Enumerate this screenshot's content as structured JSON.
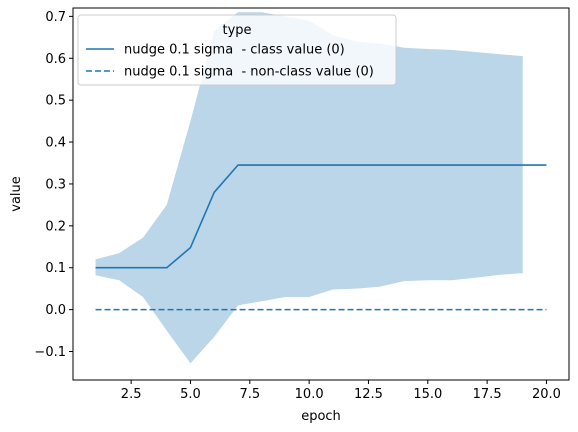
{
  "chart_data": {
    "type": "line",
    "xlabel": "epoch",
    "ylabel": "value",
    "xlim": [
      0.05,
      20.95
    ],
    "ylim": [
      -0.168,
      0.72
    ],
    "x_ticks": [
      2.5,
      5.0,
      7.5,
      10.0,
      12.5,
      15.0,
      17.5,
      20.0
    ],
    "x_tick_labels": [
      "2.5",
      "5.0",
      "7.5",
      "10.0",
      "12.5",
      "15.0",
      "17.5",
      "20.0"
    ],
    "y_ticks": [
      -0.1,
      0.0,
      0.1,
      0.2,
      0.3,
      0.4,
      0.5,
      0.6,
      0.7
    ],
    "y_tick_labels": [
      "−0.1",
      "0.0",
      "0.1",
      "0.2",
      "0.3",
      "0.4",
      "0.5",
      "0.6",
      "0.7"
    ],
    "grid": false,
    "legend": {
      "title": "type",
      "placement": "top-left"
    },
    "series": [
      {
        "name": "nudge 0.1 sigma  - class value (0)",
        "style": "solid",
        "color": "#1f77b4",
        "x": [
          1,
          2,
          3,
          4,
          5,
          6,
          7,
          8,
          9,
          10,
          11,
          12,
          13,
          14,
          15,
          16,
          17,
          18,
          19,
          20
        ],
        "values": [
          0.1,
          0.1,
          0.1,
          0.1,
          0.148,
          0.28,
          0.345,
          0.345,
          0.345,
          0.345,
          0.345,
          0.345,
          0.345,
          0.345,
          0.345,
          0.345,
          0.345,
          0.345,
          0.345,
          0.345
        ]
      },
      {
        "name": "nudge 0.1 sigma  - non-class value (0)",
        "style": "dashed",
        "color": "#1f77b4",
        "x": [
          1,
          20
        ],
        "values": [
          0.0,
          0.0
        ]
      }
    ],
    "band": {
      "color": "#1f77b4",
      "opacity": 0.3,
      "x": [
        1,
        2,
        3,
        4,
        5,
        6,
        7,
        8,
        9,
        10,
        11,
        12,
        13,
        14,
        15,
        16,
        17,
        18,
        19
      ],
      "upper": [
        0.12,
        0.135,
        0.172,
        0.25,
        0.45,
        0.665,
        0.71,
        0.71,
        0.7,
        0.69,
        0.655,
        0.64,
        0.635,
        0.625,
        0.622,
        0.62,
        0.615,
        0.61,
        0.605
      ],
      "lower": [
        0.082,
        0.07,
        0.03,
        -0.05,
        -0.128,
        -0.065,
        0.01,
        0.02,
        0.03,
        0.03,
        0.048,
        0.05,
        0.055,
        0.068,
        0.07,
        0.07,
        0.076,
        0.083,
        0.087
      ]
    }
  }
}
